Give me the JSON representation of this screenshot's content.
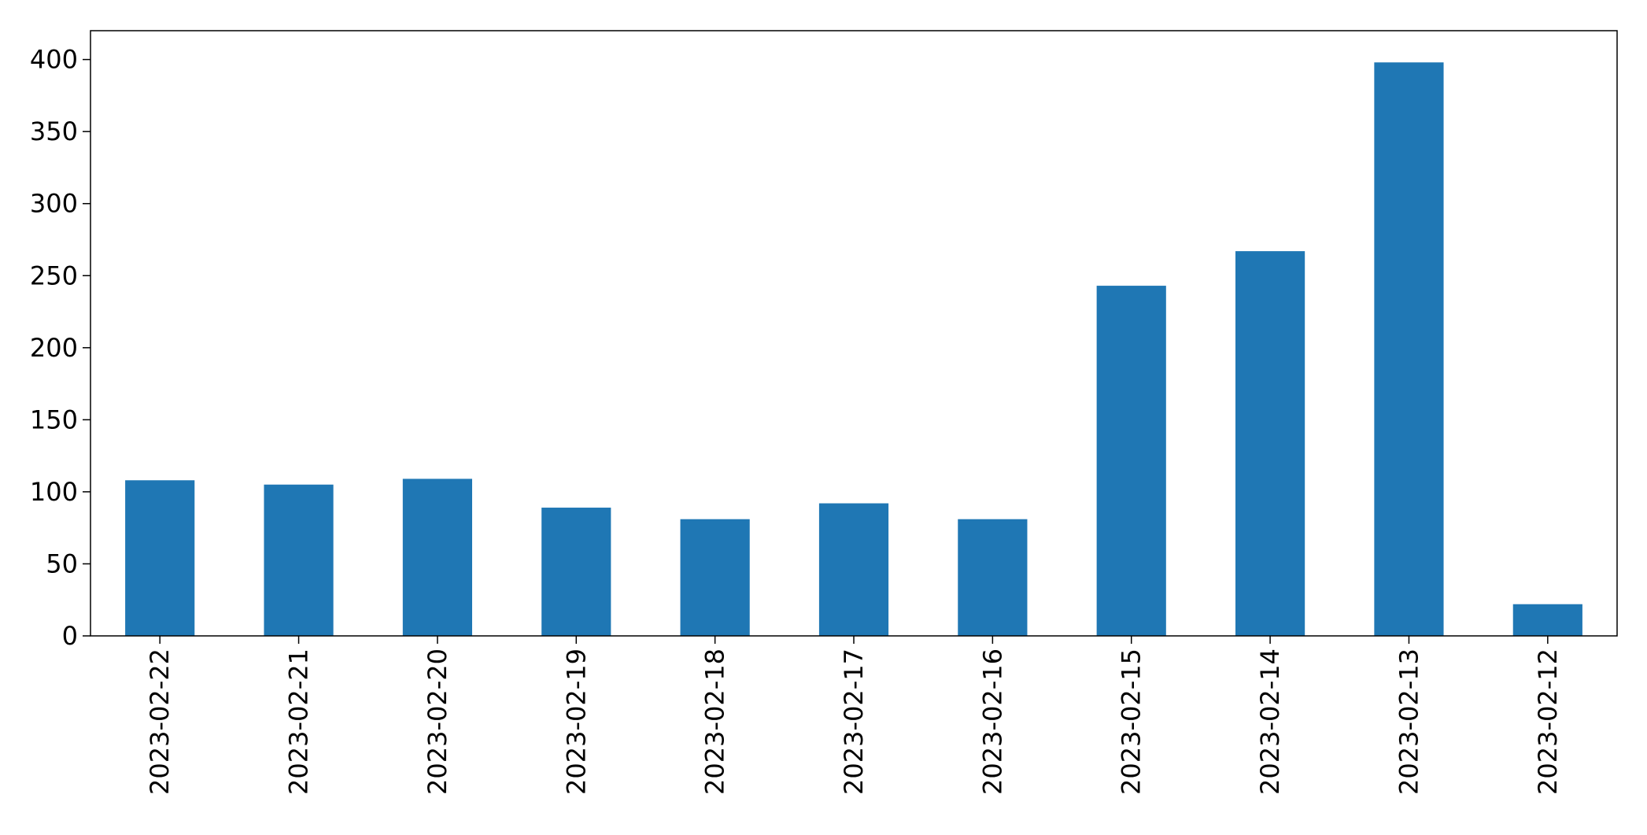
{
  "chart_data": {
    "type": "bar",
    "categories": [
      "2023-02-22",
      "2023-02-21",
      "2023-02-20",
      "2023-02-19",
      "2023-02-18",
      "2023-02-17",
      "2023-02-16",
      "2023-02-15",
      "2023-02-14",
      "2023-02-13",
      "2023-02-12"
    ],
    "values": [
      108,
      105,
      109,
      89,
      81,
      92,
      81,
      243,
      267,
      398,
      22
    ],
    "ylim": [
      0,
      420
    ],
    "yticks": [
      0,
      50,
      100,
      150,
      200,
      250,
      300,
      350,
      400
    ],
    "grid": false,
    "bar_color": "#1f77b4"
  }
}
